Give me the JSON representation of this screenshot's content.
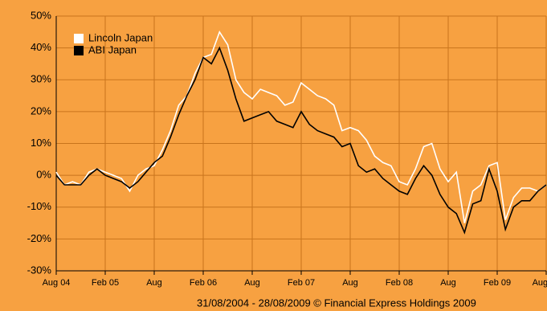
{
  "chart_data": {
    "type": "line",
    "footer": "31/08/2004 - 28/08/2009 © Financial Express Holdings 2009",
    "x": [
      0,
      1,
      2,
      3,
      4,
      5,
      6,
      7,
      8,
      9,
      10,
      11,
      12,
      13,
      14,
      15,
      16,
      17,
      18,
      19,
      20,
      21,
      22,
      23,
      24,
      25,
      26,
      27,
      28,
      29,
      30,
      31,
      32,
      33,
      34,
      35,
      36,
      37,
      38,
      39,
      40,
      41,
      42,
      43,
      44,
      45,
      46,
      47,
      48,
      49,
      50,
      51,
      52,
      53,
      54,
      55,
      56,
      57,
      58,
      59,
      60
    ],
    "xlim": [
      0,
      60
    ],
    "xticks": [
      {
        "value": 0,
        "label": "Aug 04"
      },
      {
        "value": 6,
        "label": "Feb 05"
      },
      {
        "value": 12,
        "label": "Aug"
      },
      {
        "value": 18,
        "label": "Feb 06"
      },
      {
        "value": 24,
        "label": "Aug"
      },
      {
        "value": 30,
        "label": "Feb 07"
      },
      {
        "value": 36,
        "label": "Aug"
      },
      {
        "value": 42,
        "label": "Feb 08"
      },
      {
        "value": 48,
        "label": "Aug"
      },
      {
        "value": 54,
        "label": "Feb 09"
      },
      {
        "value": 60,
        "label": "Aug 09"
      }
    ],
    "ylim": [
      -30,
      50
    ],
    "yticks": [
      {
        "value": -30,
        "label": "-30%"
      },
      {
        "value": -20,
        "label": "-20%"
      },
      {
        "value": -10,
        "label": "-10%"
      },
      {
        "value": 0,
        "label": "0%"
      },
      {
        "value": 10,
        "label": "10%"
      },
      {
        "value": 20,
        "label": "20%"
      },
      {
        "value": 30,
        "label": "30%"
      },
      {
        "value": 40,
        "label": "40%"
      },
      {
        "value": 50,
        "label": "50%"
      }
    ],
    "grid": true,
    "legend": "top-left",
    "series": [
      {
        "name": "Lincoln Japan",
        "color": "#ffffff",
        "values": [
          1,
          -3,
          -2,
          -3,
          1,
          2,
          1,
          0,
          -1,
          -5,
          0,
          2,
          3,
          8,
          14,
          22,
          25,
          32,
          37,
          38,
          45,
          41,
          30,
          26,
          24,
          27,
          26,
          25,
          22,
          23,
          29,
          27,
          25,
          24,
          22,
          14,
          15,
          14,
          11,
          6,
          4,
          3,
          -2,
          -3,
          2,
          9,
          10,
          2,
          -2,
          1,
          -15,
          -5,
          -3,
          3,
          4,
          -14,
          -7,
          -4,
          -4,
          -5,
          -3
        ]
      },
      {
        "name": "ABI Japan",
        "color": "#000000",
        "values": [
          0,
          -3,
          -3,
          -3,
          0,
          2,
          0,
          -1,
          -2,
          -4,
          -2,
          1,
          4,
          6,
          12,
          19,
          25,
          30,
          37,
          35,
          40,
          33,
          24,
          17,
          18,
          19,
          20,
          17,
          16,
          15,
          20,
          16,
          14,
          13,
          12,
          9,
          10,
          3,
          1,
          2,
          -1,
          -3,
          -5,
          -6,
          -1,
          3,
          0,
          -6,
          -10,
          -12,
          -18,
          -9,
          -8,
          2,
          -5,
          -17,
          -10,
          -8,
          -8,
          -5,
          -3
        ]
      }
    ]
  }
}
